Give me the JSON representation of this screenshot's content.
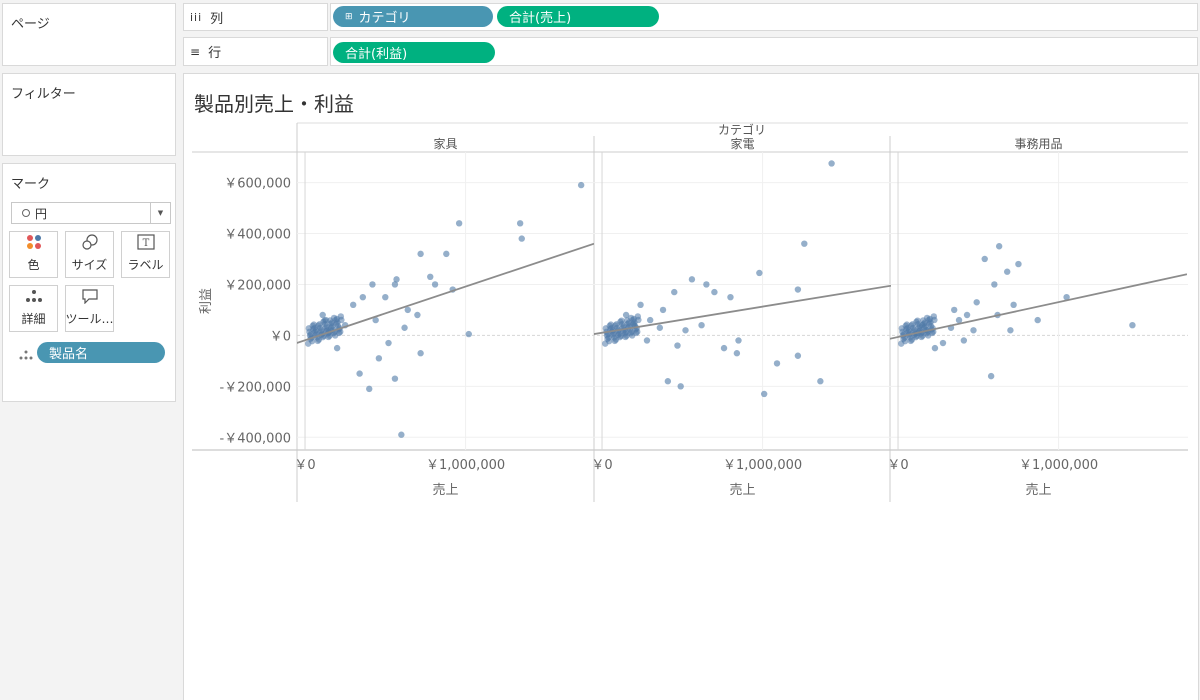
{
  "pages_panel": {
    "title": "ページ"
  },
  "filters_panel": {
    "title": "フィルター"
  },
  "marks_panel": {
    "title": "マーク",
    "mark_type": "円",
    "buttons": [
      {
        "label": "色",
        "icon": "color-icon"
      },
      {
        "label": "サイズ",
        "icon": "size-icon"
      },
      {
        "label": "ラベル",
        "icon": "label-icon"
      },
      {
        "label": "詳細",
        "icon": "detail-icon"
      },
      {
        "label": "ツール…",
        "icon": "tooltip-icon"
      }
    ],
    "detail_pill": "製品名"
  },
  "columns_shelf": {
    "label": "列",
    "pills": [
      "カテゴリ",
      "合計(売上)"
    ]
  },
  "rows_shelf": {
    "label": "行",
    "pills": [
      "合計(利益)"
    ]
  },
  "view": {
    "title": "製品別売上・利益"
  },
  "colors": {
    "pill_dimension": "#4996b2",
    "pill_measure": "#00b180",
    "mark": "#4e79a7",
    "trend": "#8c8c8c"
  },
  "chart_data": {
    "type": "scatter",
    "facet_header": "カテゴリ",
    "xlabel": "売上",
    "ylabel": "利益",
    "xlim": [
      -50000,
      1800000
    ],
    "ylim": [
      -450000,
      720000
    ],
    "yticks": [
      600000,
      400000,
      200000,
      0,
      -200000,
      -400000
    ],
    "ytick_labels": [
      "￥600,000",
      "￥400,000",
      "￥200,000",
      "￥0",
      "-￥200,000",
      "-￥400,000"
    ],
    "xticks": [
      0,
      1000000
    ],
    "xtick_labels": [
      "￥0",
      "￥1,000,000"
    ],
    "panels": [
      {
        "name": "家具",
        "trend": [
          [
            -100000,
            -40000
          ],
          [
            1800000,
            360000
          ]
        ],
        "points": [
          [
            1720000,
            590000
          ],
          [
            1340000,
            440000
          ],
          [
            960000,
            440000
          ],
          [
            1350000,
            380000
          ],
          [
            880000,
            320000
          ],
          [
            720000,
            320000
          ],
          [
            920000,
            180000
          ],
          [
            780000,
            230000
          ],
          [
            810000,
            200000
          ],
          [
            1020000,
            5000
          ],
          [
            560000,
            200000
          ],
          [
            570000,
            220000
          ],
          [
            420000,
            200000
          ],
          [
            500000,
            150000
          ],
          [
            640000,
            100000
          ],
          [
            720000,
            -70000
          ],
          [
            560000,
            -170000
          ],
          [
            400000,
            -210000
          ],
          [
            600000,
            -390000
          ],
          [
            340000,
            -150000
          ],
          [
            460000,
            -90000
          ],
          [
            700000,
            80000
          ],
          [
            620000,
            30000
          ],
          [
            520000,
            -30000
          ],
          [
            440000,
            60000
          ],
          [
            360000,
            150000
          ],
          [
            300000,
            120000
          ],
          [
            250000,
            40000
          ],
          [
            200000,
            -50000
          ],
          [
            160000,
            20000
          ],
          [
            130000,
            60000
          ],
          [
            110000,
            80000
          ]
        ]
      },
      {
        "name": "家電",
        "trend": [
          [
            -100000,
            0
          ],
          [
            1800000,
            195000
          ]
        ],
        "points": [
          [
            1430000,
            675000
          ],
          [
            980000,
            245000
          ],
          [
            1260000,
            360000
          ],
          [
            1220000,
            180000
          ],
          [
            700000,
            170000
          ],
          [
            650000,
            200000
          ],
          [
            800000,
            150000
          ],
          [
            560000,
            220000
          ],
          [
            450000,
            170000
          ],
          [
            380000,
            100000
          ],
          [
            300000,
            60000
          ],
          [
            240000,
            120000
          ],
          [
            760000,
            -50000
          ],
          [
            840000,
            -70000
          ],
          [
            1010000,
            -230000
          ],
          [
            1220000,
            -80000
          ],
          [
            1090000,
            -110000
          ],
          [
            1360000,
            -180000
          ],
          [
            410000,
            -180000
          ],
          [
            490000,
            -200000
          ],
          [
            850000,
            -20000
          ],
          [
            620000,
            40000
          ],
          [
            520000,
            20000
          ],
          [
            470000,
            -40000
          ],
          [
            360000,
            30000
          ],
          [
            280000,
            -20000
          ],
          [
            200000,
            40000
          ],
          [
            150000,
            80000
          ]
        ]
      },
      {
        "name": "事務用品",
        "trend": [
          [
            -100000,
            -20000
          ],
          [
            1800000,
            240000
          ]
        ],
        "points": [
          [
            1460000,
            40000
          ],
          [
            1050000,
            150000
          ],
          [
            870000,
            60000
          ],
          [
            680000,
            250000
          ],
          [
            630000,
            350000
          ],
          [
            750000,
            280000
          ],
          [
            540000,
            300000
          ],
          [
            600000,
            200000
          ],
          [
            720000,
            120000
          ],
          [
            580000,
            -160000
          ],
          [
            490000,
            130000
          ],
          [
            430000,
            80000
          ],
          [
            380000,
            60000
          ],
          [
            330000,
            30000
          ],
          [
            280000,
            -30000
          ],
          [
            230000,
            -50000
          ],
          [
            180000,
            20000
          ],
          [
            150000,
            40000
          ],
          [
            120000,
            10000
          ],
          [
            620000,
            80000
          ],
          [
            700000,
            20000
          ],
          [
            470000,
            20000
          ],
          [
            410000,
            -20000
          ],
          [
            350000,
            100000
          ]
        ]
      }
    ]
  }
}
